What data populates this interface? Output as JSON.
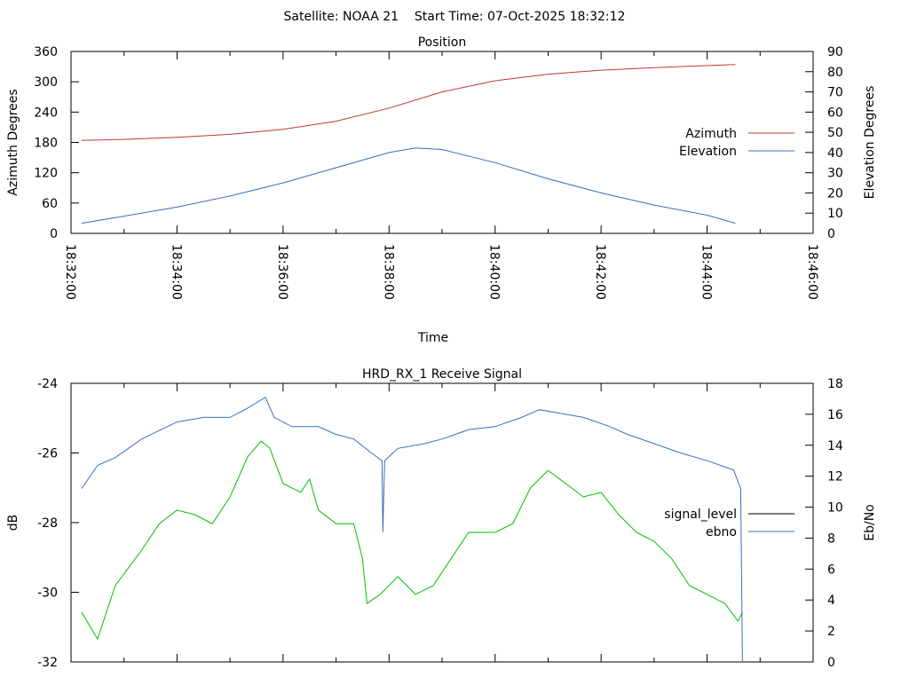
{
  "header": {
    "title": "Satellite: NOAA 21    Start Time: 07-Oct-2025 18:32:12"
  },
  "chart_data": [
    {
      "type": "line",
      "title": "Position",
      "xlabel": "Time",
      "ylabel": "Azimuth Degrees",
      "y2label": "Elevation Degrees",
      "x_unit": "seconds since 18:32:00",
      "xlim": [
        0,
        840
      ],
      "x_ticks": [
        0,
        120,
        240,
        360,
        480,
        600,
        720,
        840
      ],
      "x_tick_labels": [
        "18:32:00",
        "18:34:00",
        "18:36:00",
        "18:38:00",
        "18:40:00",
        "18:42:00",
        "18:44:00",
        "18:46:00"
      ],
      "ylim": [
        0,
        360
      ],
      "y_ticks": [
        "0",
        "60",
        "120",
        "180",
        "240",
        "300",
        "360"
      ],
      "y2lim": [
        0,
        90
      ],
      "y2_ticks": [
        "0",
        "10",
        "20",
        "30",
        "40",
        "50",
        "60",
        "70",
        "80",
        "90"
      ],
      "legend_position": "right",
      "series": [
        {
          "name": "Azimuth",
          "axis": "y",
          "color": "#c0392b",
          "x": [
            12,
            60,
            120,
            180,
            240,
            300,
            360,
            420,
            480,
            540,
            600,
            660,
            720,
            752
          ],
          "y": [
            184,
            186,
            190,
            196,
            206,
            222,
            248,
            280,
            302,
            315,
            323,
            328,
            332,
            334
          ]
        },
        {
          "name": "Elevation",
          "axis": "y2",
          "color": "#3a6fb5",
          "x": [
            12,
            60,
            120,
            180,
            240,
            300,
            360,
            390,
            420,
            480,
            540,
            600,
            660,
            720,
            752
          ],
          "y": [
            5,
            8.5,
            13,
            18.5,
            25,
            32.5,
            40,
            42.3,
            41.5,
            35,
            27,
            20,
            14,
            9,
            5
          ]
        }
      ]
    },
    {
      "type": "line",
      "title": "HRD_RX_1 Receive Signal",
      "xlabel": "",
      "ylabel": "dB",
      "y2label": "Eb/No",
      "x_unit": "seconds since 18:32:00",
      "xlim": [
        0,
        840
      ],
      "ylim": [
        -32,
        -24
      ],
      "y_ticks": [
        "-32",
        "-30",
        "-28",
        "-26",
        "-24"
      ],
      "y2lim": [
        0,
        18
      ],
      "y2_ticks": [
        "0",
        "2",
        "4",
        "6",
        "8",
        "10",
        "12",
        "14",
        "16",
        "18"
      ],
      "legend_position": "right",
      "legend": [
        {
          "name": "signal_level",
          "color": "#000000"
        },
        {
          "name": "ebno",
          "color": "#3a6fb5"
        }
      ],
      "series": [
        {
          "name": "signal_level",
          "axis": "y",
          "color": "#00c000",
          "x": [
            12,
            30,
            50,
            80,
            100,
            120,
            140,
            160,
            180,
            200,
            215,
            225,
            240,
            260,
            270,
            280,
            300,
            320,
            330,
            335,
            350,
            370,
            390,
            410,
            430,
            450,
            480,
            500,
            520,
            540,
            560,
            580,
            600,
            620,
            640,
            660,
            680,
            700,
            720,
            740,
            755,
            760
          ],
          "y": [
            -30.57,
            -31.34,
            -29.81,
            -28.79,
            -28.03,
            -27.64,
            -27.77,
            -28.03,
            -27.26,
            -26.11,
            -25.66,
            -25.86,
            -26.88,
            -27.13,
            -26.75,
            -27.64,
            -28.03,
            -28.03,
            -29.04,
            -30.32,
            -30.06,
            -29.55,
            -30.06,
            -29.81,
            -29.04,
            -28.28,
            -28.28,
            -28.03,
            -27.01,
            -26.5,
            -26.88,
            -27.26,
            -27.13,
            -27.77,
            -28.28,
            -28.54,
            -29.04,
            -29.81,
            -30.06,
            -30.32,
            -30.83,
            -30.57
          ]
        },
        {
          "name": "ebno",
          "axis": "y2",
          "color": "#3a6fb5",
          "x": [
            12,
            30,
            50,
            80,
            120,
            150,
            180,
            200,
            220,
            230,
            250,
            280,
            300,
            320,
            340,
            352,
            353,
            355,
            370,
            400,
            420,
            450,
            480,
            510,
            530,
            550,
            580,
            610,
            630,
            660,
            690,
            720,
            750,
            758,
            760
          ],
          "y": [
            11.2,
            12.7,
            13.2,
            14.4,
            15.5,
            15.8,
            15.8,
            16.4,
            17.1,
            15.8,
            15.2,
            15.2,
            14.7,
            14.4,
            13.5,
            13.0,
            8.4,
            13.0,
            13.8,
            14.1,
            14.4,
            15.0,
            15.2,
            15.8,
            16.3,
            16.1,
            15.8,
            15.2,
            14.7,
            14.1,
            13.5,
            13.0,
            12.4,
            11.2,
            0
          ]
        }
      ]
    }
  ]
}
